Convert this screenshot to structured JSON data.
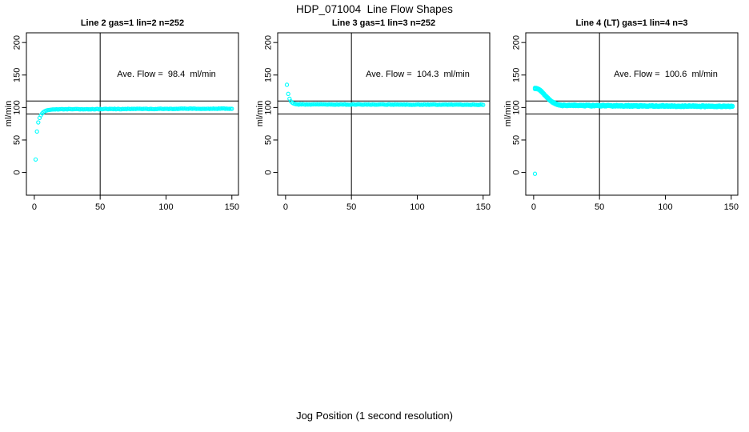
{
  "figure": {
    "title": "HDP_071004  Line Flow Shapes",
    "xlabel": "Jog Position (1 second resolution)",
    "background": "#FFFFFF",
    "point_color": "#00FFFF",
    "axis_color": "#000000"
  },
  "chart_data": [
    {
      "type": "scatter",
      "title": "Line 2 gas=1 lin=2 n=252",
      "ylabel": "ml/min",
      "annotation": "Ave. Flow =  98.4  ml/min",
      "ave_flow_ml_min": 98.4,
      "xlim": [
        -6,
        155
      ],
      "ylim": [
        -35,
        215
      ],
      "xticks": [
        0,
        50,
        100,
        150
      ],
      "yticks": [
        0,
        50,
        100,
        150,
        200
      ],
      "hlines": [
        110,
        90
      ],
      "vline": 50,
      "run_offsets": [
        0
      ],
      "head_points": [
        [
          1,
          20
        ],
        [
          2,
          63
        ],
        [
          3,
          77
        ],
        [
          4,
          84
        ],
        [
          5,
          88
        ],
        [
          6,
          91
        ],
        [
          7,
          93
        ],
        [
          8,
          94.3
        ],
        [
          9,
          95.2
        ],
        [
          10,
          95.8
        ],
        [
          11,
          96.2
        ],
        [
          12,
          96.5
        ],
        [
          13,
          96.8
        ],
        [
          14,
          97.0
        ],
        [
          15,
          97.1
        ]
      ],
      "tail": {
        "x_from": 16,
        "x_to": 150,
        "y_start": 97.3,
        "y_end": 98.3,
        "jitter": 0.45
      },
      "outliers": []
    },
    {
      "type": "scatter",
      "title": "Line 3 gas=1 lin=3 n=252",
      "ylabel": "ml/min",
      "annotation": "Ave. Flow =  104.3  ml/min",
      "ave_flow_ml_min": 104.3,
      "xlim": [
        -6,
        155
      ],
      "ylim": [
        -35,
        215
      ],
      "xticks": [
        0,
        50,
        100,
        150
      ],
      "yticks": [
        0,
        50,
        100,
        150,
        200
      ],
      "hlines": [
        110,
        90
      ],
      "vline": 50,
      "run_offsets": [
        0
      ],
      "head_points": [
        [
          1,
          135
        ],
        [
          2,
          121
        ],
        [
          3,
          113.5
        ],
        [
          4,
          109.5
        ],
        [
          5,
          107.5
        ],
        [
          6,
          106.3
        ],
        [
          7,
          105.6
        ],
        [
          8,
          105.1
        ]
      ],
      "tail": {
        "x_from": 9,
        "x_to": 150,
        "y_start": 104.8,
        "y_end": 104.2,
        "jitter": 0.4
      },
      "outliers": []
    },
    {
      "type": "scatter",
      "title": "Line 4 (LT) gas=1 lin=4 n=3",
      "ylabel": "ml/min",
      "annotation": "Ave. Flow =  100.6  ml/min",
      "ave_flow_ml_min": 100.6,
      "xlim": [
        -6,
        155
      ],
      "ylim": [
        -35,
        215
      ],
      "xticks": [
        0,
        50,
        100,
        150
      ],
      "yticks": [
        0,
        50,
        100,
        150,
        200
      ],
      "hlines": [
        110,
        90
      ],
      "vline": 50,
      "run_offsets": [
        0,
        0.85,
        -0.85
      ],
      "head_points": [
        [
          1,
          129.5
        ],
        [
          2,
          129.2
        ],
        [
          3,
          128.8
        ],
        [
          4,
          127.8
        ],
        [
          5,
          126.4
        ],
        [
          6,
          124.6
        ],
        [
          7,
          122.5
        ],
        [
          8,
          120.2
        ],
        [
          9,
          118
        ],
        [
          10,
          115.9
        ],
        [
          11,
          113.9
        ],
        [
          12,
          112
        ],
        [
          13,
          110.3
        ],
        [
          14,
          108.8
        ],
        [
          15,
          107.5
        ],
        [
          16,
          106.4
        ],
        [
          17,
          105.5
        ],
        [
          18,
          104.7
        ],
        [
          19,
          104.1
        ],
        [
          20,
          103.6
        ]
      ],
      "tail": {
        "x_from": 21,
        "x_to": 151,
        "y_start": 103.2,
        "y_end": 101.7,
        "jitter": 0.5
      },
      "outliers": [
        [
          1,
          -2
        ]
      ]
    }
  ]
}
